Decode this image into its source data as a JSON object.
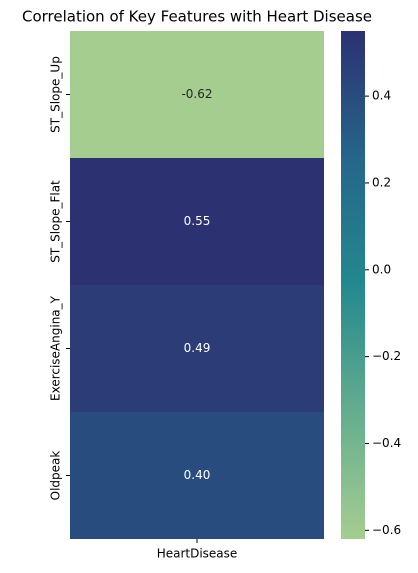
{
  "chart_data": {
    "type": "heatmap",
    "title": "Correlation of Key Features with Heart Disease",
    "x_categories": [
      "HeartDisease"
    ],
    "y_categories": [
      "ST_Slope_Up",
      "ST_Slope_Flat",
      "ExerciseAngina_Y",
      "Oldpeak"
    ],
    "values": [
      [
        -0.62
      ],
      [
        0.55
      ],
      [
        0.49
      ],
      [
        0.4
      ]
    ],
    "value_labels": [
      [
        "-0.62"
      ],
      [
        "0.55"
      ],
      [
        "0.49"
      ],
      [
        "0.40"
      ]
    ],
    "colorbar_lim": [
      -0.62,
      0.55
    ],
    "colorbar_ticks": [
      {
        "value": -0.6,
        "label": "−0.6"
      },
      {
        "value": -0.4,
        "label": "−0.4"
      },
      {
        "value": -0.2,
        "label": "−0.2"
      },
      {
        "value": 0,
        "label": "0.0"
      },
      0.2,
      0.4
    ],
    "colormap": [
      "#a5cd90",
      "#64ad8f",
      "#23898e",
      "#25668a",
      "#2c3172"
    ]
  }
}
